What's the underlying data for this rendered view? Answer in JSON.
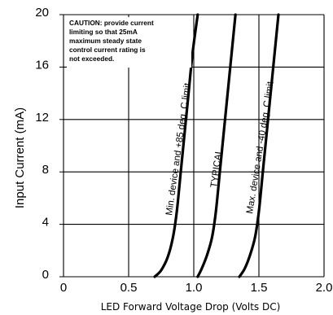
{
  "chart_data": {
    "type": "line",
    "xlabel": "LED Forward Voltage Drop (Volts DC)",
    "ylabel": "Input Current (mA)",
    "xlim": [
      0,
      2.0
    ],
    "ylim": [
      0,
      20
    ],
    "x_ticks": [
      "0",
      "0.5",
      "1.0",
      "1.5",
      "2.0"
    ],
    "y_ticks": [
      "0",
      "4",
      "8",
      "12",
      "16",
      "20"
    ],
    "grid": true,
    "annotation": {
      "lines": [
        "CAUTION: provide current",
        "limiting so that 25mA",
        "maximum steady state",
        "control current rating is",
        "not exceeded."
      ]
    },
    "series": [
      {
        "name": "Min. device and +85 deg. C limit",
        "points": [
          [
            0.7,
            0
          ],
          [
            0.75,
            0.5
          ],
          [
            0.8,
            1.5
          ],
          [
            0.84,
            3
          ],
          [
            0.87,
            5
          ],
          [
            0.9,
            8
          ],
          [
            0.93,
            11
          ],
          [
            0.96,
            14
          ],
          [
            0.99,
            17
          ],
          [
            1.03,
            20
          ]
        ]
      },
      {
        "name": "TYPICAL",
        "points": [
          [
            1.03,
            0
          ],
          [
            1.06,
            0.6
          ],
          [
            1.1,
            1.6
          ],
          [
            1.14,
            3
          ],
          [
            1.17,
            5
          ],
          [
            1.2,
            8
          ],
          [
            1.23,
            11
          ],
          [
            1.26,
            14
          ],
          [
            1.29,
            17
          ],
          [
            1.32,
            20
          ]
        ]
      },
      {
        "name": "Max. device and -40 deg. C limit",
        "points": [
          [
            1.35,
            0
          ],
          [
            1.39,
            0.6
          ],
          [
            1.43,
            1.6
          ],
          [
            1.47,
            3
          ],
          [
            1.5,
            5
          ],
          [
            1.53,
            8
          ],
          [
            1.56,
            11
          ],
          [
            1.59,
            14
          ],
          [
            1.62,
            17
          ],
          [
            1.65,
            20
          ]
        ]
      }
    ]
  }
}
